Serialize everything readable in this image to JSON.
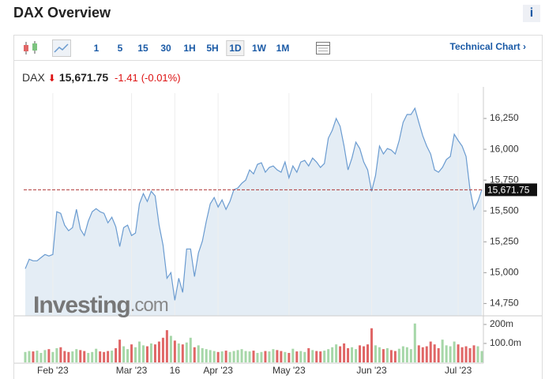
{
  "header": {
    "title": "DAX Overview",
    "info": "i"
  },
  "toolbar": {
    "intervals": [
      "1",
      "5",
      "15",
      "30",
      "1H",
      "5H",
      "1D",
      "1W",
      "1M"
    ],
    "active_interval": "1D",
    "technical_chart": "Technical Chart"
  },
  "quote": {
    "symbol": "DAX",
    "price": "15,671.75",
    "change": "-1.41",
    "change_percent": "(-0.01%)"
  },
  "watermark": {
    "brand": "Investing",
    "suffix": ".com"
  },
  "chart_data": [
    {
      "type": "line",
      "color": "#6a9bd0",
      "fill": "#dde8f3",
      "categories": [
        null,
        null,
        null,
        null,
        null,
        null,
        null,
        "Feb '23",
        null,
        null,
        null,
        null,
        null,
        null,
        null,
        null,
        null,
        null,
        null,
        null,
        null,
        null,
        null,
        null,
        null,
        null,
        null,
        "Mar '23",
        null,
        null,
        null,
        null,
        null,
        null,
        null,
        null,
        null,
        null,
        "16",
        null,
        null,
        null,
        null,
        null,
        null,
        null,
        null,
        null,
        null,
        "Apr '23",
        null,
        null,
        null,
        null,
        null,
        null,
        null,
        null,
        null,
        null,
        null,
        null,
        null,
        null,
        null,
        null,
        null,
        "May '23",
        null,
        null,
        null,
        null,
        null,
        null,
        null,
        null,
        null,
        null,
        null,
        null,
        null,
        null,
        null,
        null,
        null,
        null,
        null,
        null,
        "Jun '23",
        null,
        null,
        null,
        null,
        null,
        null,
        null,
        null,
        null,
        null,
        null,
        null,
        null,
        null,
        null,
        null,
        null,
        null,
        null,
        null,
        null,
        "Jul '23",
        null,
        null,
        null,
        null,
        null,
        null
      ],
      "values": [
        15032,
        15109,
        15096,
        15096,
        15122,
        15147,
        15135,
        15147,
        15494,
        15481,
        15385,
        15340,
        15365,
        15513,
        15353,
        15301,
        15417,
        15494,
        15519,
        15494,
        15481,
        15404,
        15449,
        15372,
        15212,
        15365,
        15385,
        15301,
        15321,
        15558,
        15641,
        15577,
        15660,
        15622,
        15385,
        15224,
        14955,
        15000,
        14776,
        14955,
        14840,
        15192,
        15192,
        14968,
        15160,
        15256,
        15417,
        15558,
        15609,
        15532,
        15590,
        15513,
        15577,
        15673,
        15686,
        15724,
        15750,
        15833,
        15801,
        15878,
        15891,
        15814,
        15853,
        15865,
        15833,
        15814,
        15897,
        15769,
        15865,
        15814,
        15897,
        15910,
        15865,
        15929,
        15897,
        15853,
        15885,
        16090,
        16154,
        16250,
        16186,
        16026,
        15833,
        15929,
        16058,
        16006,
        15897,
        15833,
        15660,
        15788,
        16026,
        15962,
        16006,
        15994,
        15962,
        16071,
        16218,
        16282,
        16282,
        16333,
        16218,
        16109,
        16026,
        15962,
        15833,
        15814,
        15853,
        15917,
        15942,
        16122,
        16071,
        16026,
        15942,
        15673,
        15513,
        15577,
        15671.75
      ],
      "ylim": [
        14650,
        16455
      ],
      "yticks": [
        {
          "value": 14750,
          "label": "14,750"
        },
        {
          "value": 15000,
          "label": "15,000"
        },
        {
          "value": 15250,
          "label": "15,250"
        },
        {
          "value": 15500,
          "label": "15,500"
        },
        {
          "value": 15750,
          "label": "15,750"
        },
        {
          "value": 16000,
          "label": "16,000"
        },
        {
          "value": 16250,
          "label": "16,250"
        }
      ],
      "price_line": {
        "value": 15671.75,
        "label": "15,671.75",
        "color": "#b03a3a"
      },
      "grid": false
    },
    {
      "type": "bar",
      "up_color": "#a6d7a8",
      "down_color": "#e06666",
      "values": [
        55,
        60,
        58,
        62,
        50,
        65,
        70,
        55,
        75,
        80,
        60,
        55,
        58,
        70,
        65,
        60,
        50,
        55,
        72,
        58,
        55,
        60,
        62,
        75,
        120,
        85,
        70,
        95,
        80,
        110,
        90,
        85,
        100,
        95,
        110,
        130,
        170,
        140,
        115,
        100,
        95,
        105,
        130,
        80,
        90,
        75,
        70,
        65,
        60,
        55,
        58,
        62,
        55,
        60,
        65,
        70,
        60,
        58,
        62,
        50,
        55,
        60,
        58,
        70,
        65,
        60,
        55,
        50,
        72,
        58,
        60,
        55,
        75,
        65,
        60,
        58,
        62,
        70,
        80,
        95,
        85,
        100,
        75,
        80,
        70,
        90,
        85,
        95,
        180,
        90,
        80,
        70,
        75,
        65,
        60,
        72,
        85,
        80,
        70,
        205,
        90,
        80,
        85,
        110,
        95,
        75,
        120,
        90,
        85,
        110,
        95,
        80,
        85,
        75,
        90,
        85,
        60
      ],
      "ylim": [
        0,
        233
      ],
      "yticks": [
        {
          "value": 100,
          "label": "100.0m"
        },
        {
          "value": 200,
          "label": "200m"
        }
      ]
    }
  ]
}
